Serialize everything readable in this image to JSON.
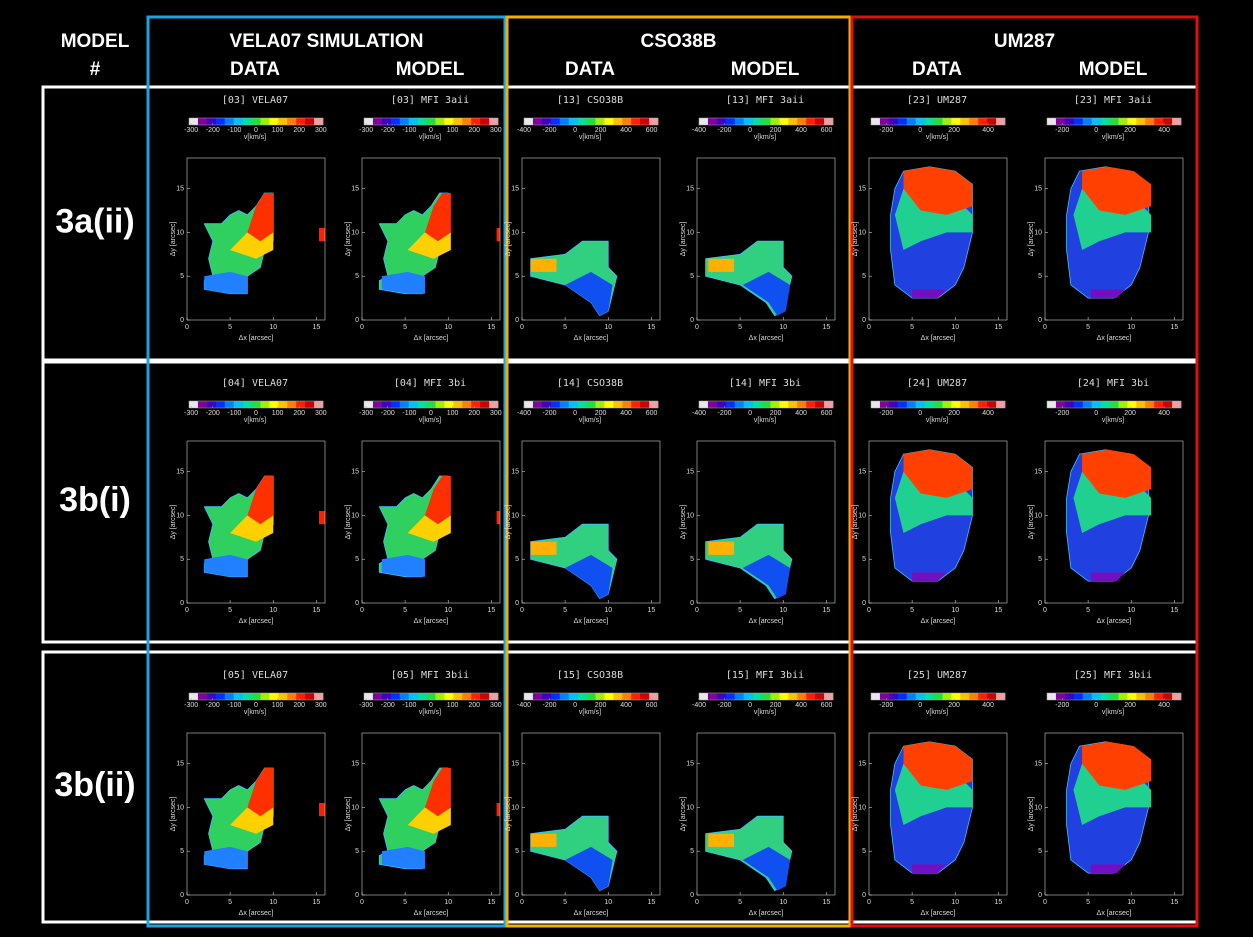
{
  "header": {
    "model_label": [
      "MODEL",
      "#"
    ]
  },
  "groups": [
    {
      "title": "VELA07 SIMULATION",
      "columns": [
        "DATA",
        "MODEL"
      ],
      "color": "#1aa3e0",
      "colorbar": {
        "lim": [
          -310,
          310
        ],
        "ticks": [
          -300,
          -200,
          -100,
          0,
          100,
          200,
          300
        ]
      }
    },
    {
      "title": "CSO38B",
      "columns": [
        "DATA",
        "MODEL"
      ],
      "color": "#f0b000",
      "colorbar": {
        "lim": [
          -400,
          650
        ],
        "ticks": [
          -400,
          -200,
          0,
          200,
          400,
          600
        ]
      }
    },
    {
      "title": "UM287",
      "columns": [
        "DATA",
        "MODEL"
      ],
      "color": "#e01010",
      "colorbar": {
        "lim": [
          -290,
          500
        ],
        "ticks": [
          -200,
          0,
          200,
          400
        ]
      }
    }
  ],
  "colorbar_label": "v[km/s]",
  "panel_axes": {
    "xlim": [
      0,
      16
    ],
    "ylim": [
      0,
      18.5
    ],
    "xticks": [
      0,
      5,
      10,
      15
    ],
    "yticks": [
      0,
      5,
      10,
      15
    ],
    "xlabel": "Δx [arcsec]",
    "ylabel": "Δy [arcsec]"
  },
  "rows": [
    {
      "label": "3a(ii)",
      "panels": [
        "[03] VELA07",
        "[03] MFI 3aii",
        "[13] CSO38B",
        "[13] MFI 3aii",
        "[23] UM287",
        "[23] MFI 3aii"
      ]
    },
    {
      "label": "3b(i)",
      "panels": [
        "[04] VELA07",
        "[04] MFI 3bi",
        "[14] CSO38B",
        "[14] MFI 3bi",
        "[24] UM287",
        "[24] MFI 3bi"
      ]
    },
    {
      "label": "3b(ii)",
      "panels": [
        "[05] VELA07",
        "[05] MFI 3bii",
        "[15] CSO38B",
        "[15] MFI 3bii",
        "[25] UM287",
        "[25] MFI 3bii"
      ]
    }
  ]
}
